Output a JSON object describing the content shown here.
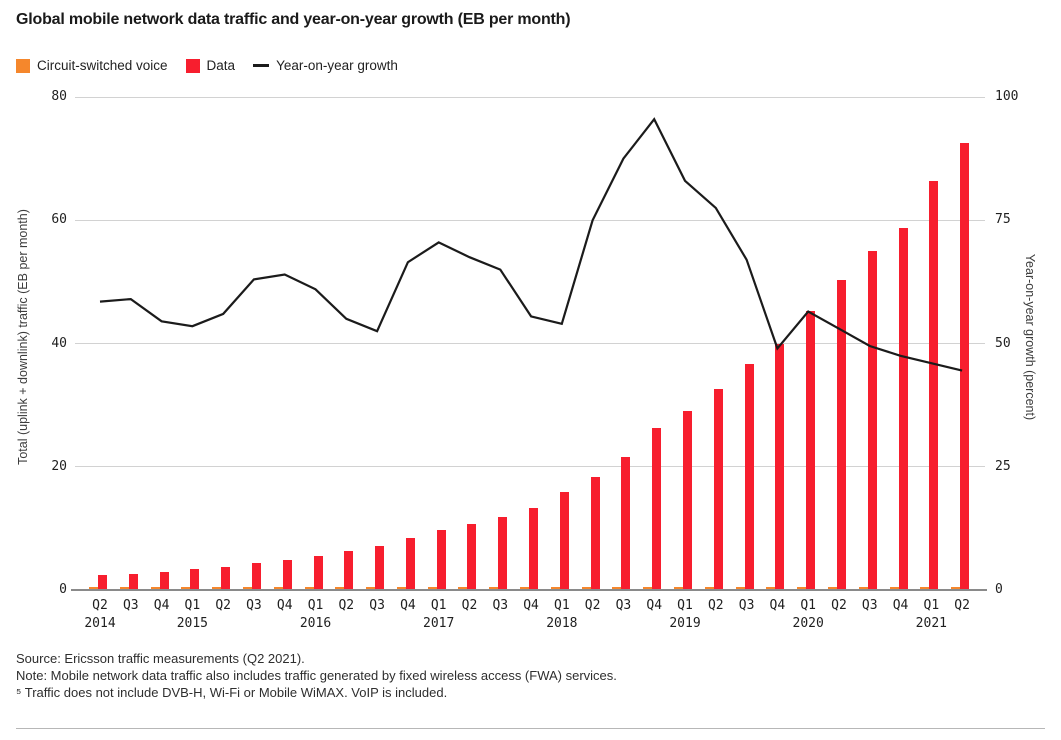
{
  "page": {
    "title": "Global mobile network data traffic and year-on-year growth (EB per month)"
  },
  "legend": {
    "items": [
      {
        "label": "Circuit-switched voice",
        "color": "#f5872c",
        "marker": "square"
      },
      {
        "label": "Data",
        "color": "#f71e2e",
        "marker": "square"
      },
      {
        "label": "Year-on-year growth",
        "color": "#1b1b1b",
        "marker": "line"
      }
    ]
  },
  "chart_data": {
    "type": "bar+line",
    "title": "Global mobile network data traffic and year-on-year growth (EB per month)",
    "categories": [
      "Q2 2014",
      "Q3 2014",
      "Q4 2014",
      "Q1 2015",
      "Q2 2015",
      "Q3 2015",
      "Q4 2015",
      "Q1 2016",
      "Q2 2016",
      "Q3 2016",
      "Q4 2016",
      "Q1 2017",
      "Q2 2017",
      "Q3 2017",
      "Q4 2017",
      "Q1 2018",
      "Q2 2018",
      "Q3 2018",
      "Q4 2018",
      "Q1 2019",
      "Q2 2019",
      "Q3 2019",
      "Q4 2019",
      "Q1 2020",
      "Q2 2020",
      "Q3 2020",
      "Q4 2020",
      "Q1 2021",
      "Q2 2021"
    ],
    "quarter_labels": [
      "Q2",
      "Q3",
      "Q4",
      "Q1",
      "Q2",
      "Q3",
      "Q4",
      "Q1",
      "Q2",
      "Q3",
      "Q4",
      "Q1",
      "Q2",
      "Q3",
      "Q4",
      "Q1",
      "Q2",
      "Q3",
      "Q4",
      "Q1",
      "Q2",
      "Q3",
      "Q4",
      "Q1",
      "Q2",
      "Q3",
      "Q4",
      "Q1",
      "Q2"
    ],
    "year_labels": [
      {
        "label": "2014",
        "index": 0
      },
      {
        "label": "2015",
        "index": 3
      },
      {
        "label": "2016",
        "index": 7
      },
      {
        "label": "2017",
        "index": 11
      },
      {
        "label": "2018",
        "index": 15
      },
      {
        "label": "2019",
        "index": 19
      },
      {
        "label": "2020",
        "index": 23
      },
      {
        "label": "2021",
        "index": 27
      }
    ],
    "series": [
      {
        "name": "Circuit-switched voice",
        "type": "bar",
        "axis": "left",
        "color": "#f5872c",
        "values": [
          0.4,
          0.4,
          0.4,
          0.4,
          0.4,
          0.4,
          0.4,
          0.4,
          0.4,
          0.4,
          0.4,
          0.4,
          0.4,
          0.4,
          0.4,
          0.4,
          0.4,
          0.4,
          0.4,
          0.4,
          0.4,
          0.4,
          0.4,
          0.4,
          0.4,
          0.4,
          0.4,
          0.4,
          0.4
        ]
      },
      {
        "name": "Data",
        "type": "bar",
        "axis": "left",
        "color": "#f71e2e",
        "values": [
          2.2,
          2.5,
          2.8,
          3.2,
          3.6,
          4.2,
          4.7,
          5.4,
          6.1,
          7.0,
          8.2,
          9.5,
          10.5,
          11.7,
          13.2,
          15.7,
          18.1,
          21.5,
          26.2,
          28.9,
          32.4,
          36.5,
          39.7,
          45.1,
          50.2,
          54.8,
          58.5,
          66.2,
          72.3
        ]
      },
      {
        "name": "Year-on-year growth",
        "type": "line",
        "axis": "right",
        "color": "#1b1b1b",
        "values": [
          58.5,
          59,
          54.5,
          53.5,
          56,
          63,
          64,
          61,
          55,
          52.5,
          66.5,
          70.5,
          67.5,
          65,
          55.5,
          54,
          75,
          87.5,
          95.5,
          83,
          77.5,
          67,
          49,
          56.5,
          53,
          49.5,
          47.5,
          46,
          44.5
        ]
      }
    ],
    "left_axis": {
      "label": "Total (uplink + downlink) traffic (EB per month)",
      "ticks": [
        0,
        20,
        40,
        60,
        80
      ],
      "range": [
        0,
        80
      ]
    },
    "right_axis": {
      "label": "Year-on-year growth (percent)",
      "ticks": [
        0,
        25,
        50,
        75,
        100
      ],
      "range": [
        0,
        100
      ]
    },
    "grid": true,
    "legend_position": "top"
  },
  "footer": {
    "source": "Source: Ericsson traffic measurements (Q2 2021).",
    "note": "Note: Mobile network data traffic also includes traffic generated by fixed wireless access (FWA) services.",
    "footnote": "⁵ Traffic does not include DVB-H, Wi-Fi or Mobile WiMAX. VoIP is included."
  }
}
